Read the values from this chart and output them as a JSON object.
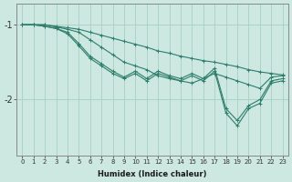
{
  "xlabel": "Humidex (Indice chaleur)",
  "ylabel": "",
  "background_color": "#cce8e0",
  "line_color": "#2e7d6b",
  "grid_color": "#a8cfc5",
  "xlim": [
    -0.5,
    23.5
  ],
  "ylim": [
    -2.75,
    -0.72
  ],
  "yticks": [
    -2,
    -1
  ],
  "xticks": [
    0,
    1,
    2,
    3,
    4,
    5,
    6,
    7,
    8,
    9,
    10,
    11,
    12,
    13,
    14,
    15,
    16,
    17,
    18,
    19,
    20,
    21,
    22,
    23
  ],
  "lines": [
    {
      "x": [
        0,
        1,
        2,
        3,
        4,
        5,
        6,
        7,
        8,
        9,
        10,
        11,
        12,
        13,
        14,
        15,
        16,
        17,
        18,
        19,
        20,
        21,
        22,
        23
      ],
      "y": [
        -1.0,
        -1.0,
        -1.0,
        -1.02,
        -1.04,
        -1.06,
        -1.1,
        -1.14,
        -1.18,
        -1.22,
        -1.26,
        -1.3,
        -1.35,
        -1.38,
        -1.42,
        -1.45,
        -1.48,
        -1.5,
        -1.53,
        -1.56,
        -1.6,
        -1.63,
        -1.65,
        -1.67
      ]
    },
    {
      "x": [
        0,
        1,
        2,
        3,
        4,
        5,
        6,
        7,
        8,
        9,
        10,
        11,
        12,
        13,
        14,
        15,
        16,
        17,
        18,
        19,
        20,
        21,
        22,
        23
      ],
      "y": [
        -1.0,
        -1.0,
        -1.0,
        -1.03,
        -1.06,
        -1.1,
        -1.2,
        -1.3,
        -1.4,
        -1.5,
        -1.55,
        -1.6,
        -1.68,
        -1.72,
        -1.75,
        -1.78,
        -1.72,
        -1.65,
        -1.7,
        -1.75,
        -1.8,
        -1.85,
        -1.7,
        -1.68
      ]
    },
    {
      "x": [
        0,
        1,
        2,
        3,
        4,
        5,
        6,
        7,
        8,
        9,
        10,
        11,
        12,
        13,
        14,
        15,
        16,
        17,
        18,
        19,
        20,
        21,
        22,
        23
      ],
      "y": [
        -1.0,
        -1.0,
        -1.02,
        -1.05,
        -1.1,
        -1.25,
        -1.42,
        -1.52,
        -1.62,
        -1.7,
        -1.62,
        -1.72,
        -1.62,
        -1.68,
        -1.72,
        -1.65,
        -1.72,
        -1.58,
        -2.12,
        -2.28,
        -2.08,
        -2.0,
        -1.75,
        -1.72
      ]
    },
    {
      "x": [
        0,
        1,
        2,
        3,
        4,
        5,
        6,
        7,
        8,
        9,
        10,
        11,
        12,
        13,
        14,
        15,
        16,
        17,
        18,
        19,
        20,
        21,
        22,
        23
      ],
      "y": [
        -1.0,
        -1.0,
        -1.02,
        -1.05,
        -1.12,
        -1.28,
        -1.45,
        -1.55,
        -1.65,
        -1.72,
        -1.65,
        -1.75,
        -1.65,
        -1.7,
        -1.75,
        -1.68,
        -1.75,
        -1.62,
        -2.18,
        -2.35,
        -2.12,
        -2.05,
        -1.78,
        -1.75
      ]
    }
  ]
}
